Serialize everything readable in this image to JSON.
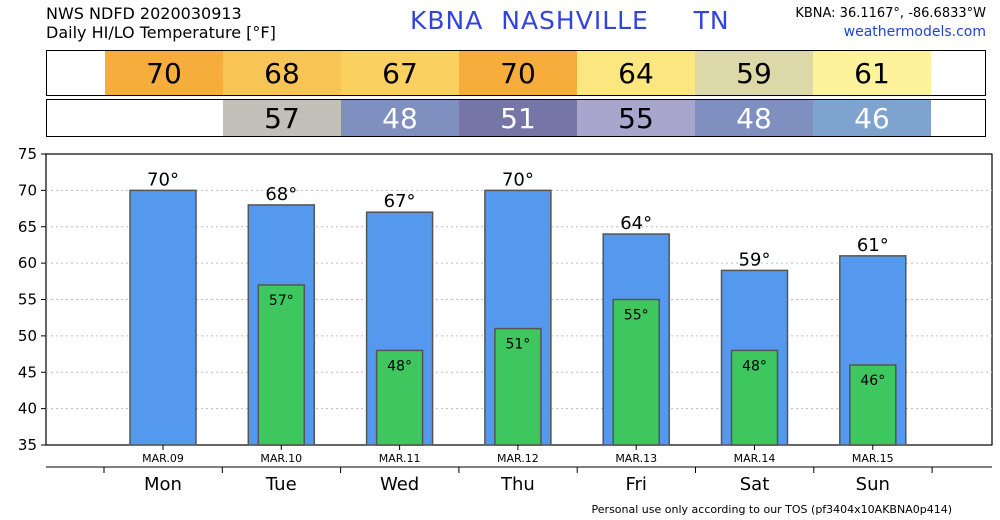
{
  "header": {
    "line1": "NWS NDFD 2020030913",
    "line2": "Daily HI/LO Temperature [°F]",
    "title": "KBNA  NASHVILLE     TN",
    "coords": "KBNA: 36.1167°, -86.6833°W",
    "site": "weathermodels.com"
  },
  "strips": {
    "hi": [
      {
        "value": "70",
        "color": "#f6ad3c"
      },
      {
        "value": "68",
        "color": "#f8c455"
      },
      {
        "value": "67",
        "color": "#fad060"
      },
      {
        "value": "70",
        "color": "#f6ad3c"
      },
      {
        "value": "64",
        "color": "#fbe680"
      },
      {
        "value": "59",
        "color": "#dcd8a8"
      },
      {
        "value": "61",
        "color": "#fcf39a"
      }
    ],
    "lo": [
      {
        "value": "",
        "color": "#ffffff",
        "dark": true
      },
      {
        "value": "57",
        "color": "#c0c0b8",
        "dark": true
      },
      {
        "value": "48",
        "color": "#7e8fc0",
        "dark": false
      },
      {
        "value": "51",
        "color": "#7676a6",
        "dark": false
      },
      {
        "value": "55",
        "color": "#a8a6cc",
        "dark": true
      },
      {
        "value": "48",
        "color": "#7e8fc0",
        "dark": false
      },
      {
        "value": "46",
        "color": "#7fa3cf",
        "dark": false
      }
    ]
  },
  "chart_data": {
    "type": "bar",
    "title": "Daily HI/LO Temperature [°F]",
    "categories": [
      "Mon",
      "Tue",
      "Wed",
      "Thu",
      "Fri",
      "Sat",
      "Sun"
    ],
    "dates": [
      "MAR.09",
      "MAR.10",
      "MAR.11",
      "MAR.12",
      "MAR.13",
      "MAR.14",
      "MAR.15"
    ],
    "series": [
      {
        "values": [
          70,
          68,
          67,
          70,
          64,
          59,
          61
        ],
        "color": "#5599ee"
      },
      {
        "values": [
          null,
          57,
          48,
          51,
          55,
          48,
          46
        ],
        "color": "#3ec65f"
      }
    ],
    "ylim": [
      35,
      75
    ],
    "yticks": [
      35,
      40,
      45,
      50,
      55,
      60,
      65,
      70,
      75
    ],
    "grid": true,
    "degree_suffix": "°"
  },
  "footer": "Personal use only according to our TOS (pf3404x10AKBNA0p414)"
}
